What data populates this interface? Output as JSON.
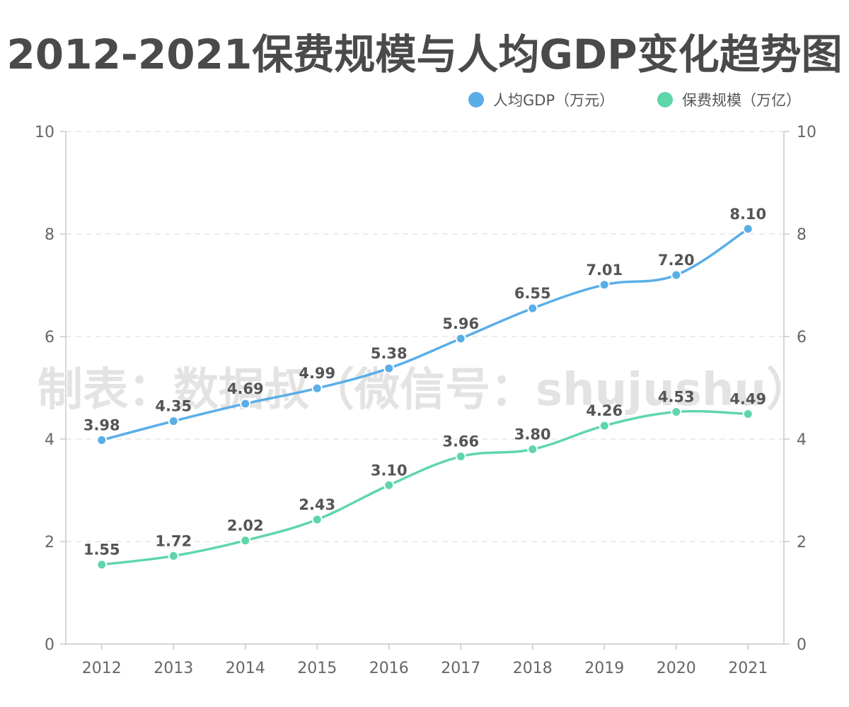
{
  "watermark": "制表：数据叔（微信号：shujushu）",
  "chart_data": {
    "type": "line",
    "title": "2012-2021保费规模与人均GDP变化趋势图",
    "categories": [
      "2012",
      "2013",
      "2014",
      "2015",
      "2016",
      "2017",
      "2018",
      "2019",
      "2020",
      "2021"
    ],
    "series": [
      {
        "name": "人均GDP（万元）",
        "color": "#5aaee8",
        "values": [
          3.98,
          4.35,
          4.69,
          4.99,
          5.38,
          5.96,
          6.55,
          7.01,
          7.2,
          8.1
        ],
        "labels": [
          "3.98",
          "4.35",
          "4.69",
          "4.99",
          "5.38",
          "5.96",
          "6.55",
          "7.01",
          "7.20",
          "8.10"
        ]
      },
      {
        "name": "保费规模（万亿）",
        "color": "#5fd6aa",
        "values": [
          1.55,
          1.72,
          2.02,
          2.43,
          3.1,
          3.66,
          3.8,
          4.26,
          4.53,
          4.49
        ],
        "labels": [
          "1.55",
          "1.72",
          "2.02",
          "2.43",
          "3.10",
          "3.66",
          "3.80",
          "4.26",
          "4.53",
          "4.49"
        ]
      }
    ],
    "ylim": [
      0,
      10
    ],
    "yticks": [
      "0",
      "2",
      "4",
      "6",
      "8",
      "10"
    ],
    "y2ticks": [
      "0",
      "2",
      "4",
      "6",
      "8",
      "10"
    ],
    "grid": true,
    "legend_position": "top-right",
    "xlabel": "",
    "ylabel": ""
  }
}
